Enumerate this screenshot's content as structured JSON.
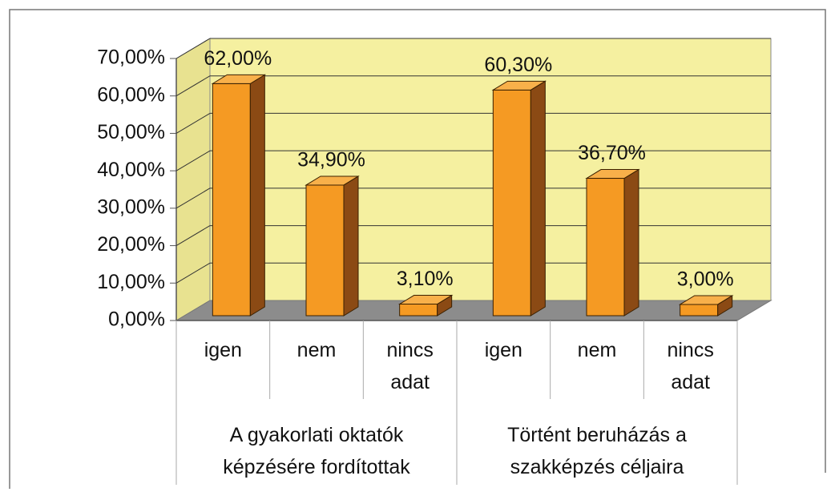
{
  "chart_data": {
    "type": "bar3d",
    "categories": [
      "igen",
      "nem",
      "nincs adat",
      "igen",
      "nem",
      "nincs adat"
    ],
    "groups": [
      "A gyakorlati oktatók képzésére fordítottak",
      "Történt beruházás a szakképzés céljaira"
    ],
    "values": [
      62.0,
      34.9,
      3.1,
      60.3,
      36.7,
      3.0
    ],
    "value_labels": [
      "62,00%",
      "34,90%",
      "3,10%",
      "60,30%",
      "36,70%",
      "3,00%"
    ],
    "color": "#f59a23",
    "ylim": [
      0,
      70
    ],
    "yticks": [
      {
        "value": 0,
        "label": "0,00%"
      },
      {
        "value": 10,
        "label": "10,00%"
      },
      {
        "value": 20,
        "label": "20,00%"
      },
      {
        "value": 30,
        "label": "30,00%"
      },
      {
        "value": 40,
        "label": "40,00%"
      },
      {
        "value": 50,
        "label": "50,00%"
      },
      {
        "value": 60,
        "label": "60,00%"
      },
      {
        "value": 70,
        "label": "70,00%"
      }
    ],
    "grid": true
  }
}
